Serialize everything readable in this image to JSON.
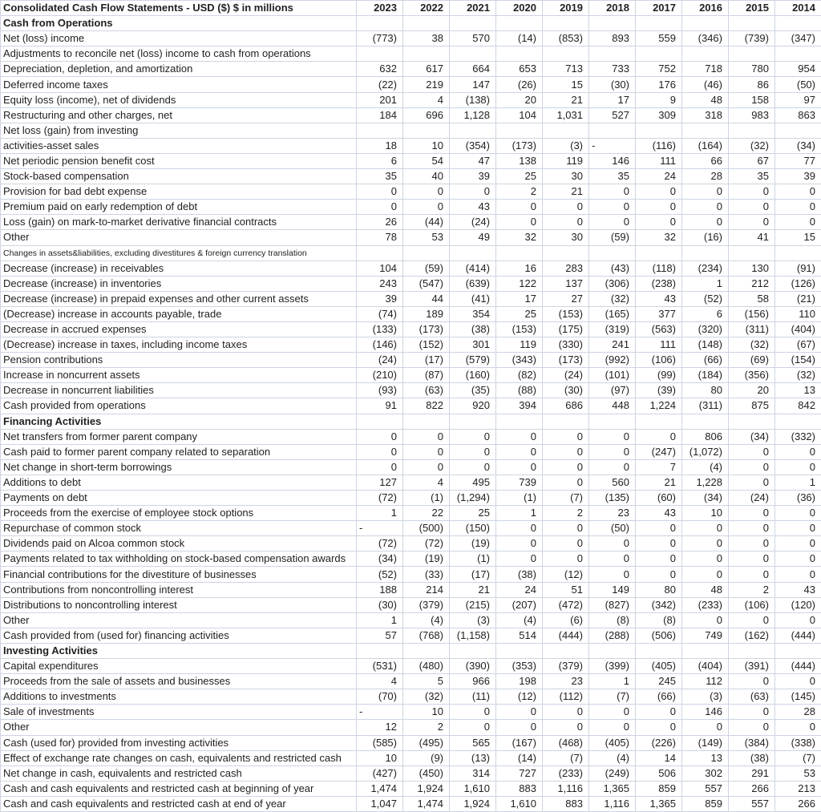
{
  "table": {
    "title": "Consolidated Cash Flow Statements - USD ($) $ in millions",
    "years": [
      "2023",
      "2022",
      "2021",
      "2020",
      "2019",
      "2018",
      "2017",
      "2016",
      "2015",
      "2014"
    ],
    "rows": [
      {
        "label": "Cash from Operations",
        "bold": true,
        "values": [
          "",
          "",
          "",
          "",
          "",
          "",
          "",
          "",
          "",
          ""
        ]
      },
      {
        "label": "Net (loss) income",
        "values": [
          "(773)",
          "38",
          "570",
          "(14)",
          "(853)",
          "893",
          "559",
          "(346)",
          "(739)",
          "(347)"
        ]
      },
      {
        "label": "Adjustments to reconcile net (loss) income to cash from operations",
        "values": [
          "",
          "",
          "",
          "",
          "",
          "",
          "",
          "",
          "",
          ""
        ]
      },
      {
        "label": "Depreciation, depletion, and amortization",
        "values": [
          "632",
          "617",
          "664",
          "653",
          "713",
          "733",
          "752",
          "718",
          "780",
          "954"
        ]
      },
      {
        "label": "Deferred income taxes",
        "values": [
          "(22)",
          "219",
          "147",
          "(26)",
          "15",
          "(30)",
          "176",
          "(46)",
          "86",
          "(50)"
        ]
      },
      {
        "label": "Equity loss (income), net of dividends",
        "values": [
          "201",
          "4",
          "(138)",
          "20",
          "21",
          "17",
          "9",
          "48",
          "158",
          "97"
        ]
      },
      {
        "label": "Restructuring and other charges, net",
        "values": [
          "184",
          "696",
          "1,128",
          "104",
          "1,031",
          "527",
          "309",
          "318",
          "983",
          "863"
        ]
      },
      {
        "label": "Net loss (gain) from investing",
        "values": [
          "",
          "",
          "",
          "",
          "",
          "",
          "",
          "",
          "",
          ""
        ]
      },
      {
        "label": "activities-asset sales",
        "values": [
          "18",
          "10",
          "(354)",
          "(173)",
          "(3)",
          "-",
          "(116)",
          "(164)",
          "(32)",
          "(34)"
        ]
      },
      {
        "label": "Net periodic pension benefit cost",
        "values": [
          "6",
          "54",
          "47",
          "138",
          "119",
          "146",
          "111",
          "66",
          "67",
          "77"
        ]
      },
      {
        "label": "Stock-based compensation",
        "values": [
          "35",
          "40",
          "39",
          "25",
          "30",
          "35",
          "24",
          "28",
          "35",
          "39"
        ]
      },
      {
        "label": "Provision for bad debt expense",
        "values": [
          "0",
          "0",
          "0",
          "2",
          "21",
          "0",
          "0",
          "0",
          "0",
          "0"
        ]
      },
      {
        "label": "Premium paid on early redemption of debt",
        "values": [
          "0",
          "0",
          "43",
          "0",
          "0",
          "0",
          "0",
          "0",
          "0",
          "0"
        ]
      },
      {
        "label": "Loss (gain) on mark-to-market derivative financial contracts",
        "values": [
          "26",
          "(44)",
          "(24)",
          "0",
          "0",
          "0",
          "0",
          "0",
          "0",
          "0"
        ]
      },
      {
        "label": "Other",
        "values": [
          "78",
          "53",
          "49",
          "32",
          "30",
          "(59)",
          "32",
          "(16)",
          "41",
          "15"
        ]
      },
      {
        "label": "Changes in assets&liabilities, excluding divestitures & foreign currency translation",
        "small": true,
        "values": [
          "",
          "",
          "",
          "",
          "",
          "",
          "",
          "",
          "",
          ""
        ]
      },
      {
        "label": "Decrease (increase) in receivables",
        "values": [
          "104",
          "(59)",
          "(414)",
          "16",
          "283",
          "(43)",
          "(118)",
          "(234)",
          "130",
          "(91)"
        ]
      },
      {
        "label": "Decrease (increase) in inventories",
        "values": [
          "243",
          "(547)",
          "(639)",
          "122",
          "137",
          "(306)",
          "(238)",
          "1",
          "212",
          "(126)"
        ]
      },
      {
        "label": "Decrease (increase) in prepaid expenses and other current assets",
        "values": [
          "39",
          "44",
          "(41)",
          "17",
          "27",
          "(32)",
          "43",
          "(52)",
          "58",
          "(21)"
        ]
      },
      {
        "label": "(Decrease) increase in accounts payable, trade",
        "values": [
          "(74)",
          "189",
          "354",
          "25",
          "(153)",
          "(165)",
          "377",
          "6",
          "(156)",
          "110"
        ]
      },
      {
        "label": "Decrease in accrued expenses",
        "values": [
          "(133)",
          "(173)",
          "(38)",
          "(153)",
          "(175)",
          "(319)",
          "(563)",
          "(320)",
          "(311)",
          "(404)"
        ]
      },
      {
        "label": "(Decrease) increase in taxes, including income taxes",
        "values": [
          "(146)",
          "(152)",
          "301",
          "119",
          "(330)",
          "241",
          "111",
          "(148)",
          "(32)",
          "(67)"
        ]
      },
      {
        "label": "Pension contributions",
        "values": [
          "(24)",
          "(17)",
          "(579)",
          "(343)",
          "(173)",
          "(992)",
          "(106)",
          "(66)",
          "(69)",
          "(154)"
        ]
      },
      {
        "label": "Increase in noncurrent assets",
        "values": [
          "(210)",
          "(87)",
          "(160)",
          "(82)",
          "(24)",
          "(101)",
          "(99)",
          "(184)",
          "(356)",
          "(32)"
        ]
      },
      {
        "label": "Decrease in noncurrent liabilities",
        "values": [
          "(93)",
          "(63)",
          "(35)",
          "(88)",
          "(30)",
          "(97)",
          "(39)",
          "80",
          "20",
          "13"
        ]
      },
      {
        "label": "Cash provided from operations",
        "values": [
          "91",
          "822",
          "920",
          "394",
          "686",
          "448",
          "1,224",
          "(311)",
          "875",
          "842"
        ]
      },
      {
        "label": "Financing Activities",
        "bold": true,
        "values": [
          "",
          "",
          "",
          "",
          "",
          "",
          "",
          "",
          "",
          ""
        ]
      },
      {
        "label": "Net transfers from former parent company",
        "values": [
          "0",
          "0",
          "0",
          "0",
          "0",
          "0",
          "0",
          "806",
          "(34)",
          "(332)"
        ]
      },
      {
        "label": "Cash paid to former parent company related to separation",
        "values": [
          "0",
          "0",
          "0",
          "0",
          "0",
          "0",
          "(247)",
          "(1,072)",
          "0",
          "0"
        ]
      },
      {
        "label": "Net change in short-term borrowings",
        "values": [
          "0",
          "0",
          "0",
          "0",
          "0",
          "0",
          "7",
          "(4)",
          "0",
          "0"
        ]
      },
      {
        "label": "Additions to debt",
        "values": [
          "127",
          "4",
          "495",
          "739",
          "0",
          "560",
          "21",
          "1,228",
          "0",
          "1"
        ]
      },
      {
        "label": "Payments on debt",
        "values": [
          "(72)",
          "(1)",
          "(1,294)",
          "(1)",
          "(7)",
          "(135)",
          "(60)",
          "(34)",
          "(24)",
          "(36)"
        ]
      },
      {
        "label": "Proceeds from the exercise of employee stock options",
        "values": [
          "1",
          "22",
          "25",
          "1",
          "2",
          "23",
          "43",
          "10",
          "0",
          "0"
        ]
      },
      {
        "label": "Repurchase of common stock",
        "values": [
          "-",
          "(500)",
          "(150)",
          "0",
          "0",
          "(50)",
          "0",
          "0",
          "0",
          "0"
        ]
      },
      {
        "label": "Dividends paid on Alcoa common stock",
        "values": [
          "(72)",
          "(72)",
          "(19)",
          "0",
          "0",
          "0",
          "0",
          "0",
          "0",
          "0"
        ]
      },
      {
        "label": "Payments related to tax withholding on stock-based compensation awards",
        "values": [
          "(34)",
          "(19)",
          "(1)",
          "0",
          "0",
          "0",
          "0",
          "0",
          "0",
          "0"
        ]
      },
      {
        "label": "Financial contributions for the divestiture of businesses",
        "values": [
          "(52)",
          "(33)",
          "(17)",
          "(38)",
          "(12)",
          "0",
          "0",
          "0",
          "0",
          "0"
        ]
      },
      {
        "label": "Contributions from noncontrolling interest",
        "values": [
          "188",
          "214",
          "21",
          "24",
          "51",
          "149",
          "80",
          "48",
          "2",
          "43"
        ]
      },
      {
        "label": "Distributions to noncontrolling interest",
        "values": [
          "(30)",
          "(379)",
          "(215)",
          "(207)",
          "(472)",
          "(827)",
          "(342)",
          "(233)",
          "(106)",
          "(120)"
        ]
      },
      {
        "label": "Other",
        "values": [
          "1",
          "(4)",
          "(3)",
          "(4)",
          "(6)",
          "(8)",
          "(8)",
          "0",
          "0",
          "0"
        ]
      },
      {
        "label": "Cash provided from (used for) financing activities",
        "values": [
          "57",
          "(768)",
          "(1,158)",
          "514",
          "(444)",
          "(288)",
          "(506)",
          "749",
          "(162)",
          "(444)"
        ]
      },
      {
        "label": "Investing Activities",
        "bold": true,
        "values": [
          "",
          "",
          "",
          "",
          "",
          "",
          "",
          "",
          "",
          ""
        ]
      },
      {
        "label": "Capital expenditures",
        "values": [
          "(531)",
          "(480)",
          "(390)",
          "(353)",
          "(379)",
          "(399)",
          "(405)",
          "(404)",
          "(391)",
          "(444)"
        ]
      },
      {
        "label": "Proceeds from the sale of assets and businesses",
        "values": [
          "4",
          "5",
          "966",
          "198",
          "23",
          "1",
          "245",
          "112",
          "0",
          "0"
        ]
      },
      {
        "label": "Additions to investments",
        "values": [
          "(70)",
          "(32)",
          "(11)",
          "(12)",
          "(112)",
          "(7)",
          "(66)",
          "(3)",
          "(63)",
          "(145)"
        ]
      },
      {
        "label": "Sale of investments",
        "values": [
          "-",
          "10",
          "0",
          "0",
          "0",
          "0",
          "0",
          "146",
          "0",
          "28"
        ]
      },
      {
        "label": "Other",
        "values": [
          "12",
          "2",
          "0",
          "0",
          "0",
          "0",
          "0",
          "0",
          "0",
          "0"
        ]
      },
      {
        "label": "Cash (used for) provided from investing activities",
        "values": [
          "(585)",
          "(495)",
          "565",
          "(167)",
          "(468)",
          "(405)",
          "(226)",
          "(149)",
          "(384)",
          "(338)"
        ]
      },
      {
        "label": "Effect of exchange rate changes on cash, equivalents and restricted cash",
        "values": [
          "10",
          "(9)",
          "(13)",
          "(14)",
          "(7)",
          "(4)",
          "14",
          "13",
          "(38)",
          "(7)"
        ]
      },
      {
        "label": "Net change in cash, equivalents and restricted cash",
        "values": [
          "(427)",
          "(450)",
          "314",
          "727",
          "(233)",
          "(249)",
          "506",
          "302",
          "291",
          "53"
        ]
      },
      {
        "label": "Cash and cash equivalents and restricted cash at beginning of year",
        "values": [
          "1,474",
          "1,924",
          "1,610",
          "883",
          "1,116",
          "1,365",
          "859",
          "557",
          "266",
          "213"
        ]
      },
      {
        "label": "Cash and cash equivalents and restricted cash at end of year",
        "values": [
          "1,047",
          "1,474",
          "1,924",
          "1,610",
          "883",
          "1,116",
          "1,365",
          "859",
          "557",
          "266"
        ]
      }
    ]
  },
  "colors": {
    "grid_line": "#ccd5e2",
    "outer_border": "#8f9aa6",
    "text": "#1f1f1f",
    "background": "#ffffff"
  }
}
